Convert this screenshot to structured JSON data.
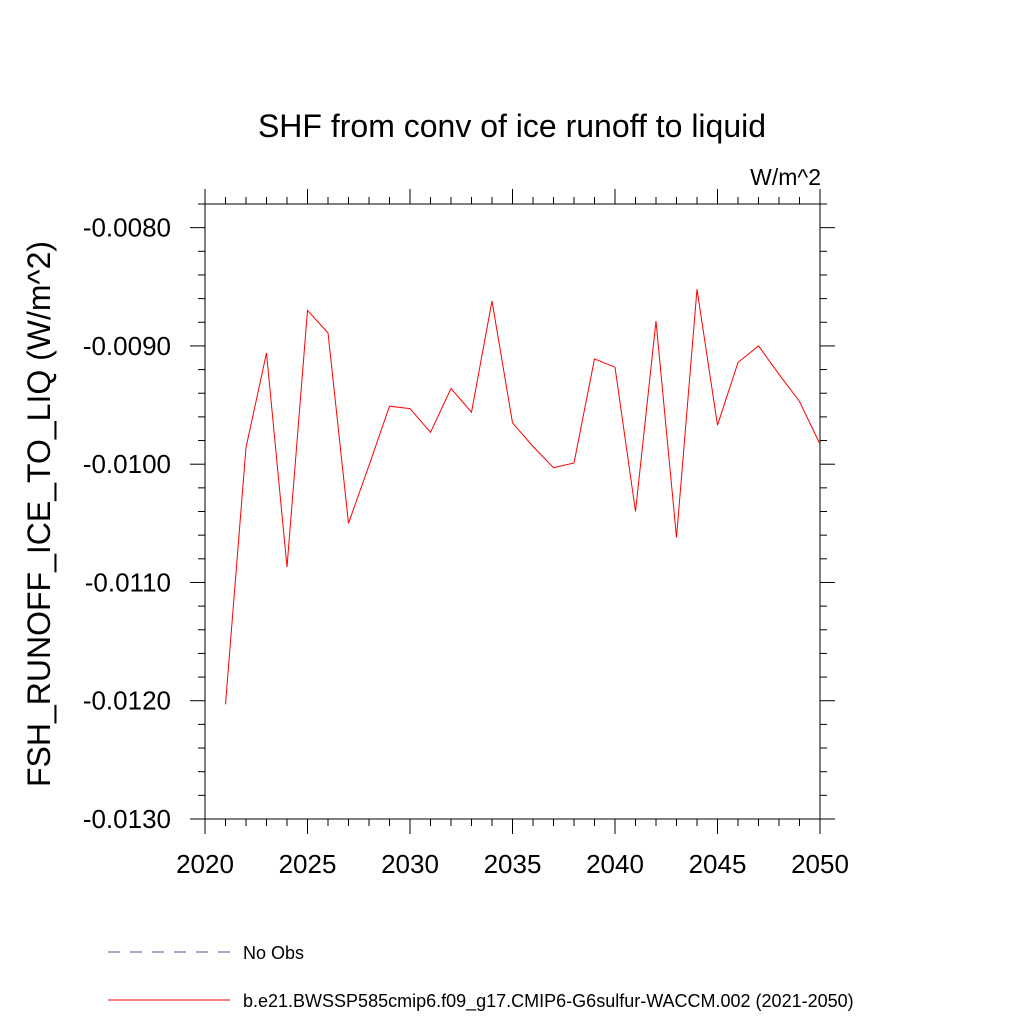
{
  "chart_data": {
    "type": "line",
    "title": "SHF from conv of ice runoff to liquid",
    "units": "W/m^2",
    "ylabel": "FSH_RUNOFF_ICE_TO_LIQ  (W/m^2)",
    "xlabel": "",
    "xlim": [
      2020,
      2050
    ],
    "ylim": [
      -0.013,
      -0.0078
    ],
    "x_ticks": [
      2020,
      2025,
      2030,
      2035,
      2040,
      2045,
      2050
    ],
    "x_tick_labels": [
      "2020",
      "2025",
      "2030",
      "2035",
      "2040",
      "2045",
      "2050"
    ],
    "y_ticks": [
      -0.013,
      -0.012,
      -0.011,
      -0.01,
      -0.009,
      -0.008
    ],
    "y_tick_labels": [
      "-0.0130",
      "-0.0120",
      "-0.0110",
      "-0.0100",
      "-0.0090",
      "-0.0080"
    ],
    "grid": false,
    "legend_position": "bottom",
    "series": [
      {
        "name": "No Obs",
        "color": "#5c4d99",
        "dash": "dashed",
        "x": [],
        "values": []
      },
      {
        "name": "b.e21.BWSSP585cmip6.f09_g17.CMIP6-G6sulfur-WACCM.002 (2021-2050)",
        "color": "#ff0000",
        "dash": "solid",
        "x": [
          2021,
          2022,
          2023,
          2024,
          2025,
          2026,
          2027,
          2028,
          2029,
          2030,
          2031,
          2032,
          2033,
          2034,
          2035,
          2036,
          2037,
          2038,
          2039,
          2040,
          2041,
          2042,
          2043,
          2044,
          2045,
          2046,
          2047,
          2048,
          2049,
          2050
        ],
        "values": [
          -0.01203,
          -0.00986,
          -0.00906,
          -0.01087,
          -0.0087,
          -0.00889,
          -0.0105,
          -0.01001,
          -0.00951,
          -0.00953,
          -0.00973,
          -0.00936,
          -0.00956,
          -0.00862,
          -0.00965,
          -0.00985,
          -0.01003,
          -0.00999,
          -0.00911,
          -0.00918,
          -0.0104,
          -0.00879,
          -0.01062,
          -0.00852,
          -0.00967,
          -0.00914,
          -0.009,
          -0.00924,
          -0.00947,
          -0.00983
        ]
      }
    ]
  }
}
